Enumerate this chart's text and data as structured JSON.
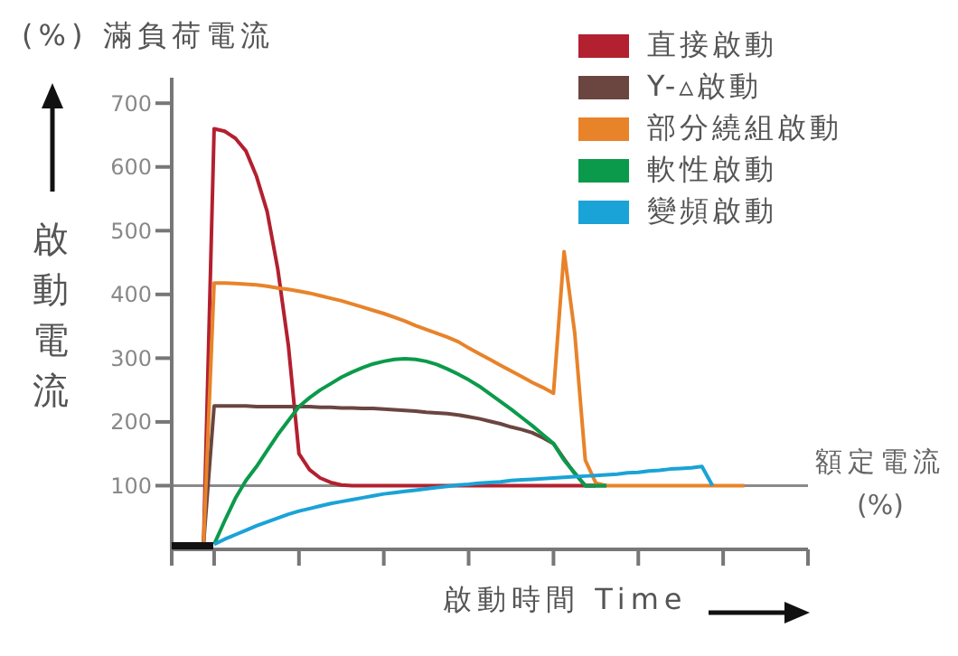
{
  "chart_data": {
    "type": "line",
    "title": "(%) 滿負荷電流",
    "ylabel": "啟動電流",
    "xlabel": "啟動時間 Time",
    "categories": [
      null,
      null,
      null,
      null,
      null,
      null,
      null,
      null,
      null,
      null,
      null,
      null,
      null,
      null,
      null,
      null,
      null,
      null,
      null,
      null,
      null,
      null,
      null,
      null,
      null,
      null,
      null,
      null,
      null,
      null,
      null,
      null,
      null,
      null,
      null,
      null,
      null,
      null,
      null,
      null,
      null,
      null,
      null,
      null,
      null,
      null,
      null,
      null,
      null,
      null,
      null,
      null,
      null,
      null,
      null,
      null,
      null,
      null,
      null,
      null,
      null
    ],
    "ylim": [
      0,
      740
    ],
    "yticks": [
      100,
      200,
      300,
      400,
      500,
      600,
      700
    ],
    "grid": false,
    "legend": "top right",
    "marker": "none",
    "line_style": "solid",
    "ref_lines": [
      {
        "axis": "y",
        "value": 100,
        "label": "額定電流 (%)",
        "color": "#8a8a8a"
      }
    ],
    "series": [
      {
        "name": "直接啟動",
        "color": "#b3202f",
        "values": [
          null,
          null,
          null,
          8,
          660,
          656,
          645,
          625,
          585,
          530,
          440,
          320,
          150,
          125,
          112,
          105,
          101,
          100,
          100,
          100,
          100,
          100,
          100,
          100,
          100,
          100,
          100,
          100,
          100,
          100,
          100,
          100,
          100,
          100,
          100,
          100,
          100,
          100,
          100,
          100,
          100,
          null,
          null,
          null,
          null,
          null,
          null,
          null,
          null,
          null,
          null,
          null,
          null,
          null,
          null,
          null,
          null,
          null,
          null,
          null,
          null
        ]
      },
      {
        "name": "Y-▵啟動",
        "color": "#6b4540",
        "values": [
          null,
          null,
          null,
          8,
          225,
          225,
          225,
          225,
          224,
          224,
          224,
          224,
          224,
          224,
          223,
          223,
          222,
          222,
          221,
          221,
          220,
          219,
          218,
          217,
          215,
          214,
          213,
          211,
          208,
          205,
          201,
          197,
          192,
          188,
          183,
          175,
          166,
          142,
          119,
          100,
          100,
          100,
          null,
          null,
          null,
          null,
          null,
          null,
          null,
          null,
          null,
          null,
          null,
          null,
          null,
          null,
          null,
          null,
          null,
          null,
          null
        ]
      },
      {
        "name": "部分繞組啟動",
        "color": "#e8832a",
        "values": [
          null,
          null,
          null,
          8,
          418,
          418,
          417,
          416,
          415,
          413,
          410,
          408,
          405,
          402,
          398,
          394,
          390,
          385,
          380,
          375,
          370,
          364,
          358,
          351,
          345,
          339,
          333,
          326,
          316,
          307,
          298,
          289,
          280,
          271,
          262,
          254,
          245,
          467,
          340,
          140,
          104,
          100,
          100,
          100,
          100,
          100,
          100,
          100,
          100,
          100,
          100,
          100,
          100,
          100,
          100,
          null,
          null,
          null,
          null,
          null,
          null
        ]
      },
      {
        "name": "軟性啟動",
        "color": "#0b9a4b",
        "values": [
          null,
          null,
          null,
          null,
          8,
          45,
          80,
          108,
          130,
          155,
          180,
          202,
          224,
          238,
          250,
          260,
          270,
          278,
          285,
          291,
          295,
          298,
          299,
          298,
          295,
          290,
          283,
          275,
          266,
          256,
          244,
          232,
          220,
          207,
          194,
          180,
          166,
          140,
          120,
          100,
          100,
          100,
          null,
          null,
          null,
          null,
          null,
          null,
          null,
          null,
          null,
          null,
          null,
          null,
          null,
          null,
          null,
          null,
          null,
          null,
          null
        ]
      },
      {
        "name": "變頻啟動",
        "color": "#1aa3d6",
        "values": [
          null,
          null,
          null,
          null,
          8,
          16,
          23,
          30,
          37,
          43,
          49,
          55,
          60,
          64,
          68,
          72,
          75,
          78,
          81,
          84,
          87,
          89,
          91,
          93,
          95,
          97,
          99,
          101,
          102,
          104,
          105,
          106,
          108,
          109,
          110,
          111,
          112,
          113,
          114,
          115,
          116,
          117,
          118,
          120,
          121,
          123,
          124,
          126,
          127,
          128,
          130,
          100,
          null,
          null,
          null,
          null,
          null,
          null,
          null,
          null,
          null
        ]
      }
    ]
  }
}
